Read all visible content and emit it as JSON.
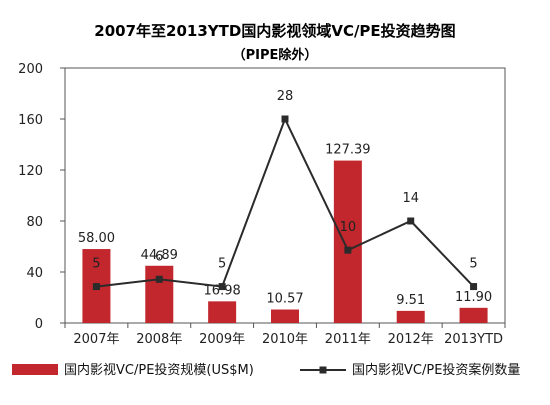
{
  "chart_data": {
    "type": "bar",
    "title": "2007年至2013YTD国内影视领域VC/PE投资趋势图",
    "subtitle": "（PIPE除外）",
    "categories": [
      "2007年",
      "2008年",
      "2009年",
      "2010年",
      "2011年",
      "2012年",
      "2013YTD"
    ],
    "series": [
      {
        "name": "国内影视VC/PE投资规模(US$M)",
        "type": "bar",
        "color": "#c1272d",
        "values": [
          58.0,
          44.89,
          16.98,
          10.57,
          127.39,
          9.51,
          11.9
        ],
        "labels": [
          "58.00",
          "44.89",
          "16.98",
          "10.57",
          "127.39",
          "9.51",
          "11.90"
        ]
      },
      {
        "name": "国内影视VC/PE投资案例数量",
        "type": "line",
        "color": "#2b2b2b",
        "values": [
          5,
          6,
          5,
          28,
          10,
          14,
          5
        ],
        "labels": [
          "5",
          "6",
          "5",
          "28",
          "10",
          "14",
          "5"
        ]
      }
    ],
    "yticks": [
      "0",
      "40",
      "80",
      "120",
      "160",
      "200"
    ],
    "ylim": [
      0,
      200
    ],
    "line_ylim": [
      0,
      35
    ],
    "grid": false,
    "legend": "bottom"
  }
}
